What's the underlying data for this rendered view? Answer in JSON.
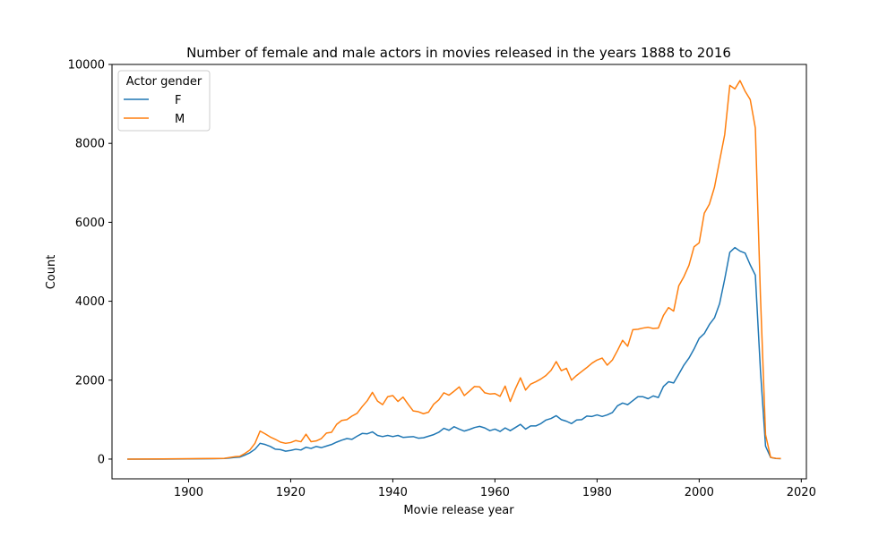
{
  "chart_data": {
    "type": "line",
    "title": "Number of female and male actors in movies released in the years 1888 to 2016",
    "xlabel": "Movie release year",
    "ylabel": "Count",
    "xlim": [
      1885,
      2021
    ],
    "ylim": [
      -500,
      10000
    ],
    "xticks": [
      1900,
      1920,
      1940,
      1960,
      1980,
      2000,
      2020
    ],
    "yticks": [
      0,
      2000,
      4000,
      6000,
      8000,
      10000
    ],
    "grid": false,
    "legend": {
      "title": "Actor gender",
      "position": "top-left"
    },
    "series": [
      {
        "name": "F",
        "color": "#1f77b4",
        "points": [
          [
            1888,
            0
          ],
          [
            1895,
            0
          ],
          [
            1900,
            5
          ],
          [
            1905,
            10
          ],
          [
            1907,
            15
          ],
          [
            1909,
            40
          ],
          [
            1910,
            50
          ],
          [
            1911,
            100
          ],
          [
            1912,
            160
          ],
          [
            1913,
            250
          ],
          [
            1914,
            400
          ],
          [
            1915,
            370
          ],
          [
            1916,
            320
          ],
          [
            1917,
            250
          ],
          [
            1918,
            240
          ],
          [
            1919,
            200
          ],
          [
            1920,
            220
          ],
          [
            1921,
            250
          ],
          [
            1922,
            230
          ],
          [
            1923,
            300
          ],
          [
            1924,
            270
          ],
          [
            1925,
            320
          ],
          [
            1926,
            290
          ],
          [
            1927,
            330
          ],
          [
            1928,
            370
          ],
          [
            1929,
            430
          ],
          [
            1930,
            480
          ],
          [
            1931,
            520
          ],
          [
            1932,
            500
          ],
          [
            1933,
            580
          ],
          [
            1934,
            650
          ],
          [
            1935,
            640
          ],
          [
            1936,
            690
          ],
          [
            1937,
            600
          ],
          [
            1938,
            570
          ],
          [
            1939,
            600
          ],
          [
            1940,
            570
          ],
          [
            1941,
            600
          ],
          [
            1942,
            550
          ],
          [
            1943,
            560
          ],
          [
            1944,
            570
          ],
          [
            1945,
            530
          ],
          [
            1946,
            540
          ],
          [
            1947,
            580
          ],
          [
            1948,
            620
          ],
          [
            1949,
            680
          ],
          [
            1950,
            780
          ],
          [
            1951,
            730
          ],
          [
            1952,
            820
          ],
          [
            1953,
            760
          ],
          [
            1954,
            710
          ],
          [
            1955,
            750
          ],
          [
            1956,
            800
          ],
          [
            1957,
            830
          ],
          [
            1958,
            790
          ],
          [
            1959,
            720
          ],
          [
            1960,
            760
          ],
          [
            1961,
            700
          ],
          [
            1962,
            790
          ],
          [
            1963,
            720
          ],
          [
            1964,
            800
          ],
          [
            1965,
            880
          ],
          [
            1966,
            760
          ],
          [
            1967,
            840
          ],
          [
            1968,
            840
          ],
          [
            1969,
            900
          ],
          [
            1970,
            990
          ],
          [
            1971,
            1030
          ],
          [
            1972,
            1100
          ],
          [
            1973,
            1000
          ],
          [
            1974,
            960
          ],
          [
            1975,
            900
          ],
          [
            1976,
            990
          ],
          [
            1977,
            1000
          ],
          [
            1978,
            1090
          ],
          [
            1979,
            1080
          ],
          [
            1980,
            1120
          ],
          [
            1981,
            1080
          ],
          [
            1982,
            1120
          ],
          [
            1983,
            1180
          ],
          [
            1984,
            1350
          ],
          [
            1985,
            1420
          ],
          [
            1986,
            1380
          ],
          [
            1987,
            1480
          ],
          [
            1988,
            1580
          ],
          [
            1989,
            1580
          ],
          [
            1990,
            1530
          ],
          [
            1991,
            1600
          ],
          [
            1992,
            1560
          ],
          [
            1993,
            1840
          ],
          [
            1994,
            1960
          ],
          [
            1995,
            1930
          ],
          [
            1996,
            2150
          ],
          [
            1997,
            2380
          ],
          [
            1998,
            2560
          ],
          [
            1999,
            2790
          ],
          [
            2000,
            3060
          ],
          [
            2001,
            3180
          ],
          [
            2002,
            3410
          ],
          [
            2003,
            3580
          ],
          [
            2004,
            3940
          ],
          [
            2005,
            4560
          ],
          [
            2006,
            5240
          ],
          [
            2007,
            5360
          ],
          [
            2008,
            5270
          ],
          [
            2009,
            5220
          ],
          [
            2010,
            4920
          ],
          [
            2011,
            4660
          ],
          [
            2012,
            2250
          ],
          [
            2013,
            330
          ],
          [
            2014,
            40
          ],
          [
            2015,
            15
          ],
          [
            2016,
            10
          ]
        ]
      },
      {
        "name": "M",
        "color": "#ff7f0e",
        "points": [
          [
            1888,
            0
          ],
          [
            1895,
            5
          ],
          [
            1900,
            10
          ],
          [
            1905,
            15
          ],
          [
            1907,
            20
          ],
          [
            1909,
            60
          ],
          [
            1910,
            70
          ],
          [
            1911,
            140
          ],
          [
            1912,
            230
          ],
          [
            1913,
            400
          ],
          [
            1914,
            710
          ],
          [
            1915,
            640
          ],
          [
            1916,
            560
          ],
          [
            1917,
            500
          ],
          [
            1918,
            430
          ],
          [
            1919,
            400
          ],
          [
            1920,
            420
          ],
          [
            1921,
            470
          ],
          [
            1922,
            440
          ],
          [
            1923,
            630
          ],
          [
            1924,
            440
          ],
          [
            1925,
            460
          ],
          [
            1926,
            520
          ],
          [
            1927,
            660
          ],
          [
            1928,
            680
          ],
          [
            1929,
            880
          ],
          [
            1930,
            980
          ],
          [
            1931,
            1000
          ],
          [
            1932,
            1090
          ],
          [
            1933,
            1160
          ],
          [
            1934,
            1330
          ],
          [
            1935,
            1480
          ],
          [
            1936,
            1690
          ],
          [
            1937,
            1470
          ],
          [
            1938,
            1380
          ],
          [
            1939,
            1580
          ],
          [
            1940,
            1610
          ],
          [
            1941,
            1460
          ],
          [
            1942,
            1570
          ],
          [
            1943,
            1390
          ],
          [
            1944,
            1220
          ],
          [
            1945,
            1200
          ],
          [
            1946,
            1150
          ],
          [
            1947,
            1190
          ],
          [
            1948,
            1390
          ],
          [
            1949,
            1500
          ],
          [
            1950,
            1680
          ],
          [
            1951,
            1620
          ],
          [
            1952,
            1720
          ],
          [
            1953,
            1830
          ],
          [
            1954,
            1610
          ],
          [
            1955,
            1720
          ],
          [
            1956,
            1840
          ],
          [
            1957,
            1830
          ],
          [
            1958,
            1680
          ],
          [
            1959,
            1650
          ],
          [
            1960,
            1660
          ],
          [
            1961,
            1590
          ],
          [
            1962,
            1850
          ],
          [
            1963,
            1460
          ],
          [
            1964,
            1780
          ],
          [
            1965,
            2060
          ],
          [
            1966,
            1750
          ],
          [
            1967,
            1900
          ],
          [
            1968,
            1960
          ],
          [
            1969,
            2030
          ],
          [
            1970,
            2120
          ],
          [
            1971,
            2250
          ],
          [
            1972,
            2470
          ],
          [
            1973,
            2240
          ],
          [
            1974,
            2300
          ],
          [
            1975,
            2000
          ],
          [
            1976,
            2120
          ],
          [
            1977,
            2220
          ],
          [
            1978,
            2320
          ],
          [
            1979,
            2430
          ],
          [
            1980,
            2510
          ],
          [
            1981,
            2560
          ],
          [
            1982,
            2380
          ],
          [
            1983,
            2510
          ],
          [
            1984,
            2750
          ],
          [
            1985,
            3010
          ],
          [
            1986,
            2860
          ],
          [
            1987,
            3280
          ],
          [
            1988,
            3290
          ],
          [
            1989,
            3320
          ],
          [
            1990,
            3340
          ],
          [
            1991,
            3310
          ],
          [
            1992,
            3320
          ],
          [
            1993,
            3640
          ],
          [
            1994,
            3840
          ],
          [
            1995,
            3750
          ],
          [
            1996,
            4390
          ],
          [
            1997,
            4620
          ],
          [
            1998,
            4910
          ],
          [
            1999,
            5380
          ],
          [
            2000,
            5480
          ],
          [
            2001,
            6230
          ],
          [
            2002,
            6460
          ],
          [
            2003,
            6890
          ],
          [
            2004,
            7560
          ],
          [
            2005,
            8220
          ],
          [
            2006,
            9470
          ],
          [
            2007,
            9380
          ],
          [
            2008,
            9590
          ],
          [
            2009,
            9320
          ],
          [
            2010,
            9110
          ],
          [
            2011,
            8390
          ],
          [
            2012,
            4140
          ],
          [
            2013,
            620
          ],
          [
            2014,
            45
          ],
          [
            2015,
            20
          ],
          [
            2016,
            15
          ]
        ]
      }
    ]
  }
}
